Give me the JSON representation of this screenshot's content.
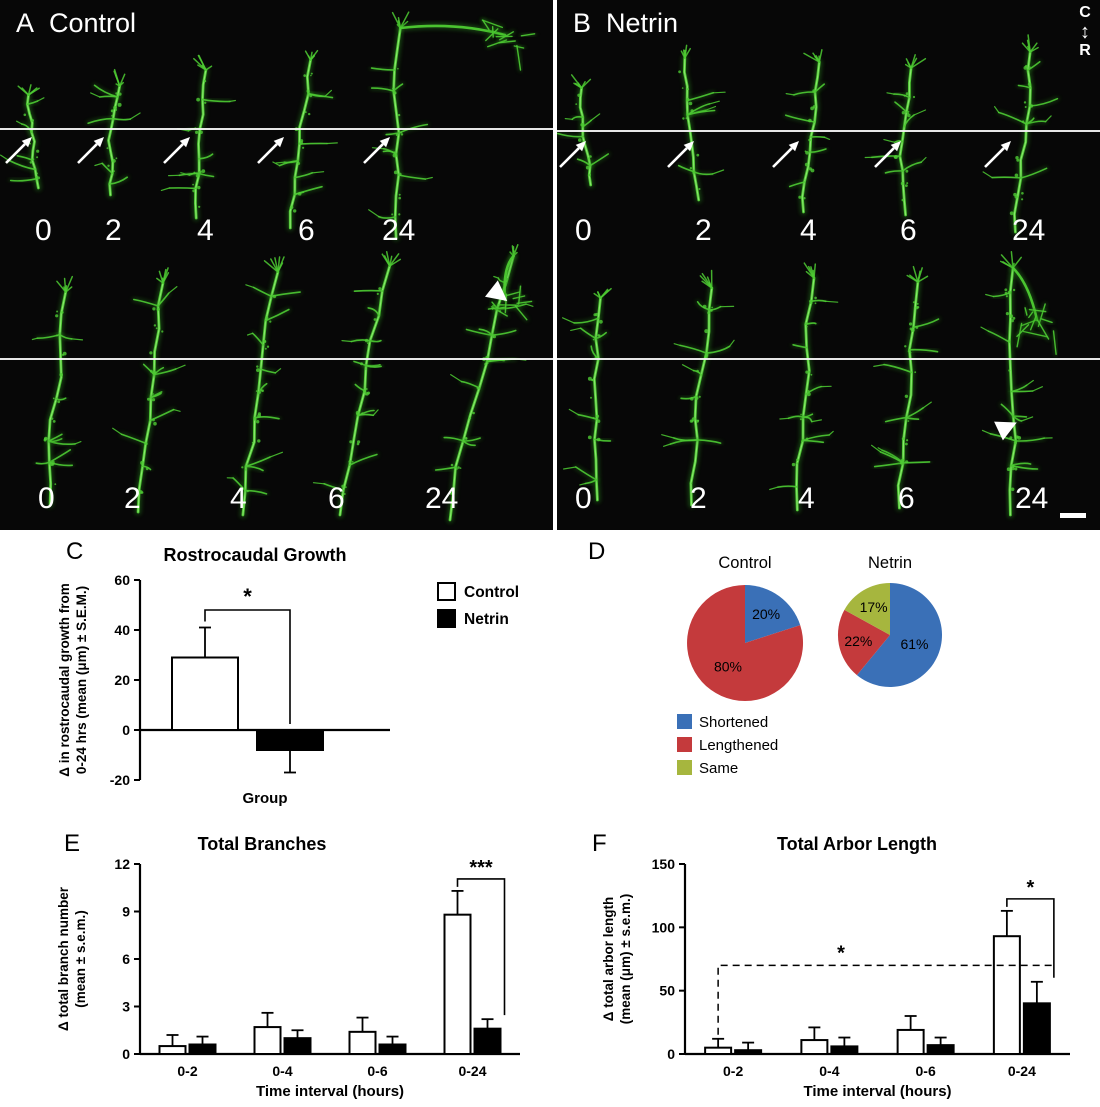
{
  "figure": {
    "panel_a": {
      "label": "A",
      "condition": "Control",
      "row1_times": [
        "0",
        "2",
        "4",
        "6",
        "24"
      ],
      "row2_times": [
        "0",
        "2",
        "4",
        "6",
        "24"
      ]
    },
    "panel_b": {
      "label": "B",
      "condition": "Netrin",
      "row1_times": [
        "0",
        "2",
        "4",
        "6",
        "24"
      ],
      "row2_times": [
        "0",
        "2",
        "4",
        "6",
        "24"
      ]
    },
    "orientation_indicator": {
      "top": "C",
      "bottom": "R"
    }
  },
  "chart_data": [
    {
      "panel_label": "C",
      "type": "bar",
      "title": "Rostrocaudal Growth",
      "ylabel_lines": [
        "Δ in rostrocaudal growth from",
        "0-24 hrs (mean (μm) ± S.E.M.)"
      ],
      "xlabel": "Group",
      "ylim": [
        -20,
        60
      ],
      "yticks": [
        60,
        40,
        20,
        0,
        -20
      ],
      "categories": [
        ""
      ],
      "series": [
        {
          "name": "Control",
          "fill": "#ffffff",
          "values": [
            29
          ],
          "errors": [
            12
          ]
        },
        {
          "name": "Netrin",
          "fill": "#000000",
          "values": [
            -8
          ],
          "errors": [
            9
          ]
        }
      ],
      "significance": {
        "label": "*"
      }
    },
    {
      "panel_label": "D",
      "type": "pie",
      "pies": [
        {
          "title": "Control",
          "slices": [
            {
              "label": "Shortened",
              "pct": 20
            },
            {
              "label": "Lengthened",
              "pct": 80
            }
          ]
        },
        {
          "title": "Netrin",
          "slices": [
            {
              "label": "Shortened",
              "pct": 61
            },
            {
              "label": "Lengthened",
              "pct": 22
            },
            {
              "label": "Same",
              "pct": 17
            }
          ]
        }
      ],
      "colors": {
        "Shortened": "#3a70b7",
        "Lengthened": "#c43a3c",
        "Same": "#a6b63e"
      },
      "legend": [
        "Shortened",
        "Lengthened",
        "Same"
      ]
    },
    {
      "panel_label": "E",
      "type": "bar",
      "title": "Total Branches",
      "ylabel_lines": [
        "Δ total branch number",
        "(mean ± s.e.m.)"
      ],
      "xlabel": "Time interval (hours)",
      "ylim": [
        0,
        12
      ],
      "yticks": [
        0,
        3,
        6,
        9,
        12
      ],
      "categories": [
        "0-2",
        "0-4",
        "0-6",
        "0-24"
      ],
      "series": [
        {
          "name": "Control",
          "fill": "#ffffff",
          "values": [
            0.5,
            1.7,
            1.4,
            8.8
          ],
          "errors": [
            0.7,
            0.9,
            0.9,
            1.5
          ]
        },
        {
          "name": "Netrin",
          "fill": "#000000",
          "values": [
            0.6,
            1.0,
            0.6,
            1.6
          ],
          "errors": [
            0.5,
            0.5,
            0.5,
            0.6
          ]
        }
      ],
      "significance": {
        "label": "***",
        "category": "0-24"
      }
    },
    {
      "panel_label": "F",
      "type": "bar",
      "title": "Total Arbor Length",
      "ylabel_lines": [
        "Δ total arbor length",
        "(mean (μm) ± s.e.m.)"
      ],
      "xlabel": "Time interval (hours)",
      "ylim": [
        0,
        150
      ],
      "yticks": [
        0,
        50,
        100,
        150
      ],
      "categories": [
        "0-2",
        "0-4",
        "0-6",
        "0-24"
      ],
      "series": [
        {
          "name": "Control",
          "fill": "#ffffff",
          "values": [
            5,
            11,
            19,
            93
          ],
          "errors": [
            7,
            10,
            11,
            20
          ]
        },
        {
          "name": "Netrin",
          "fill": "#000000",
          "values": [
            3,
            6,
            7,
            40
          ],
          "errors": [
            6,
            7,
            6,
            17
          ]
        }
      ],
      "significance": {
        "label": "*",
        "category": "0-24"
      },
      "dashed_comparison": {
        "label": "*",
        "from": "0-2",
        "to": "0-24",
        "height": 70
      }
    }
  ]
}
